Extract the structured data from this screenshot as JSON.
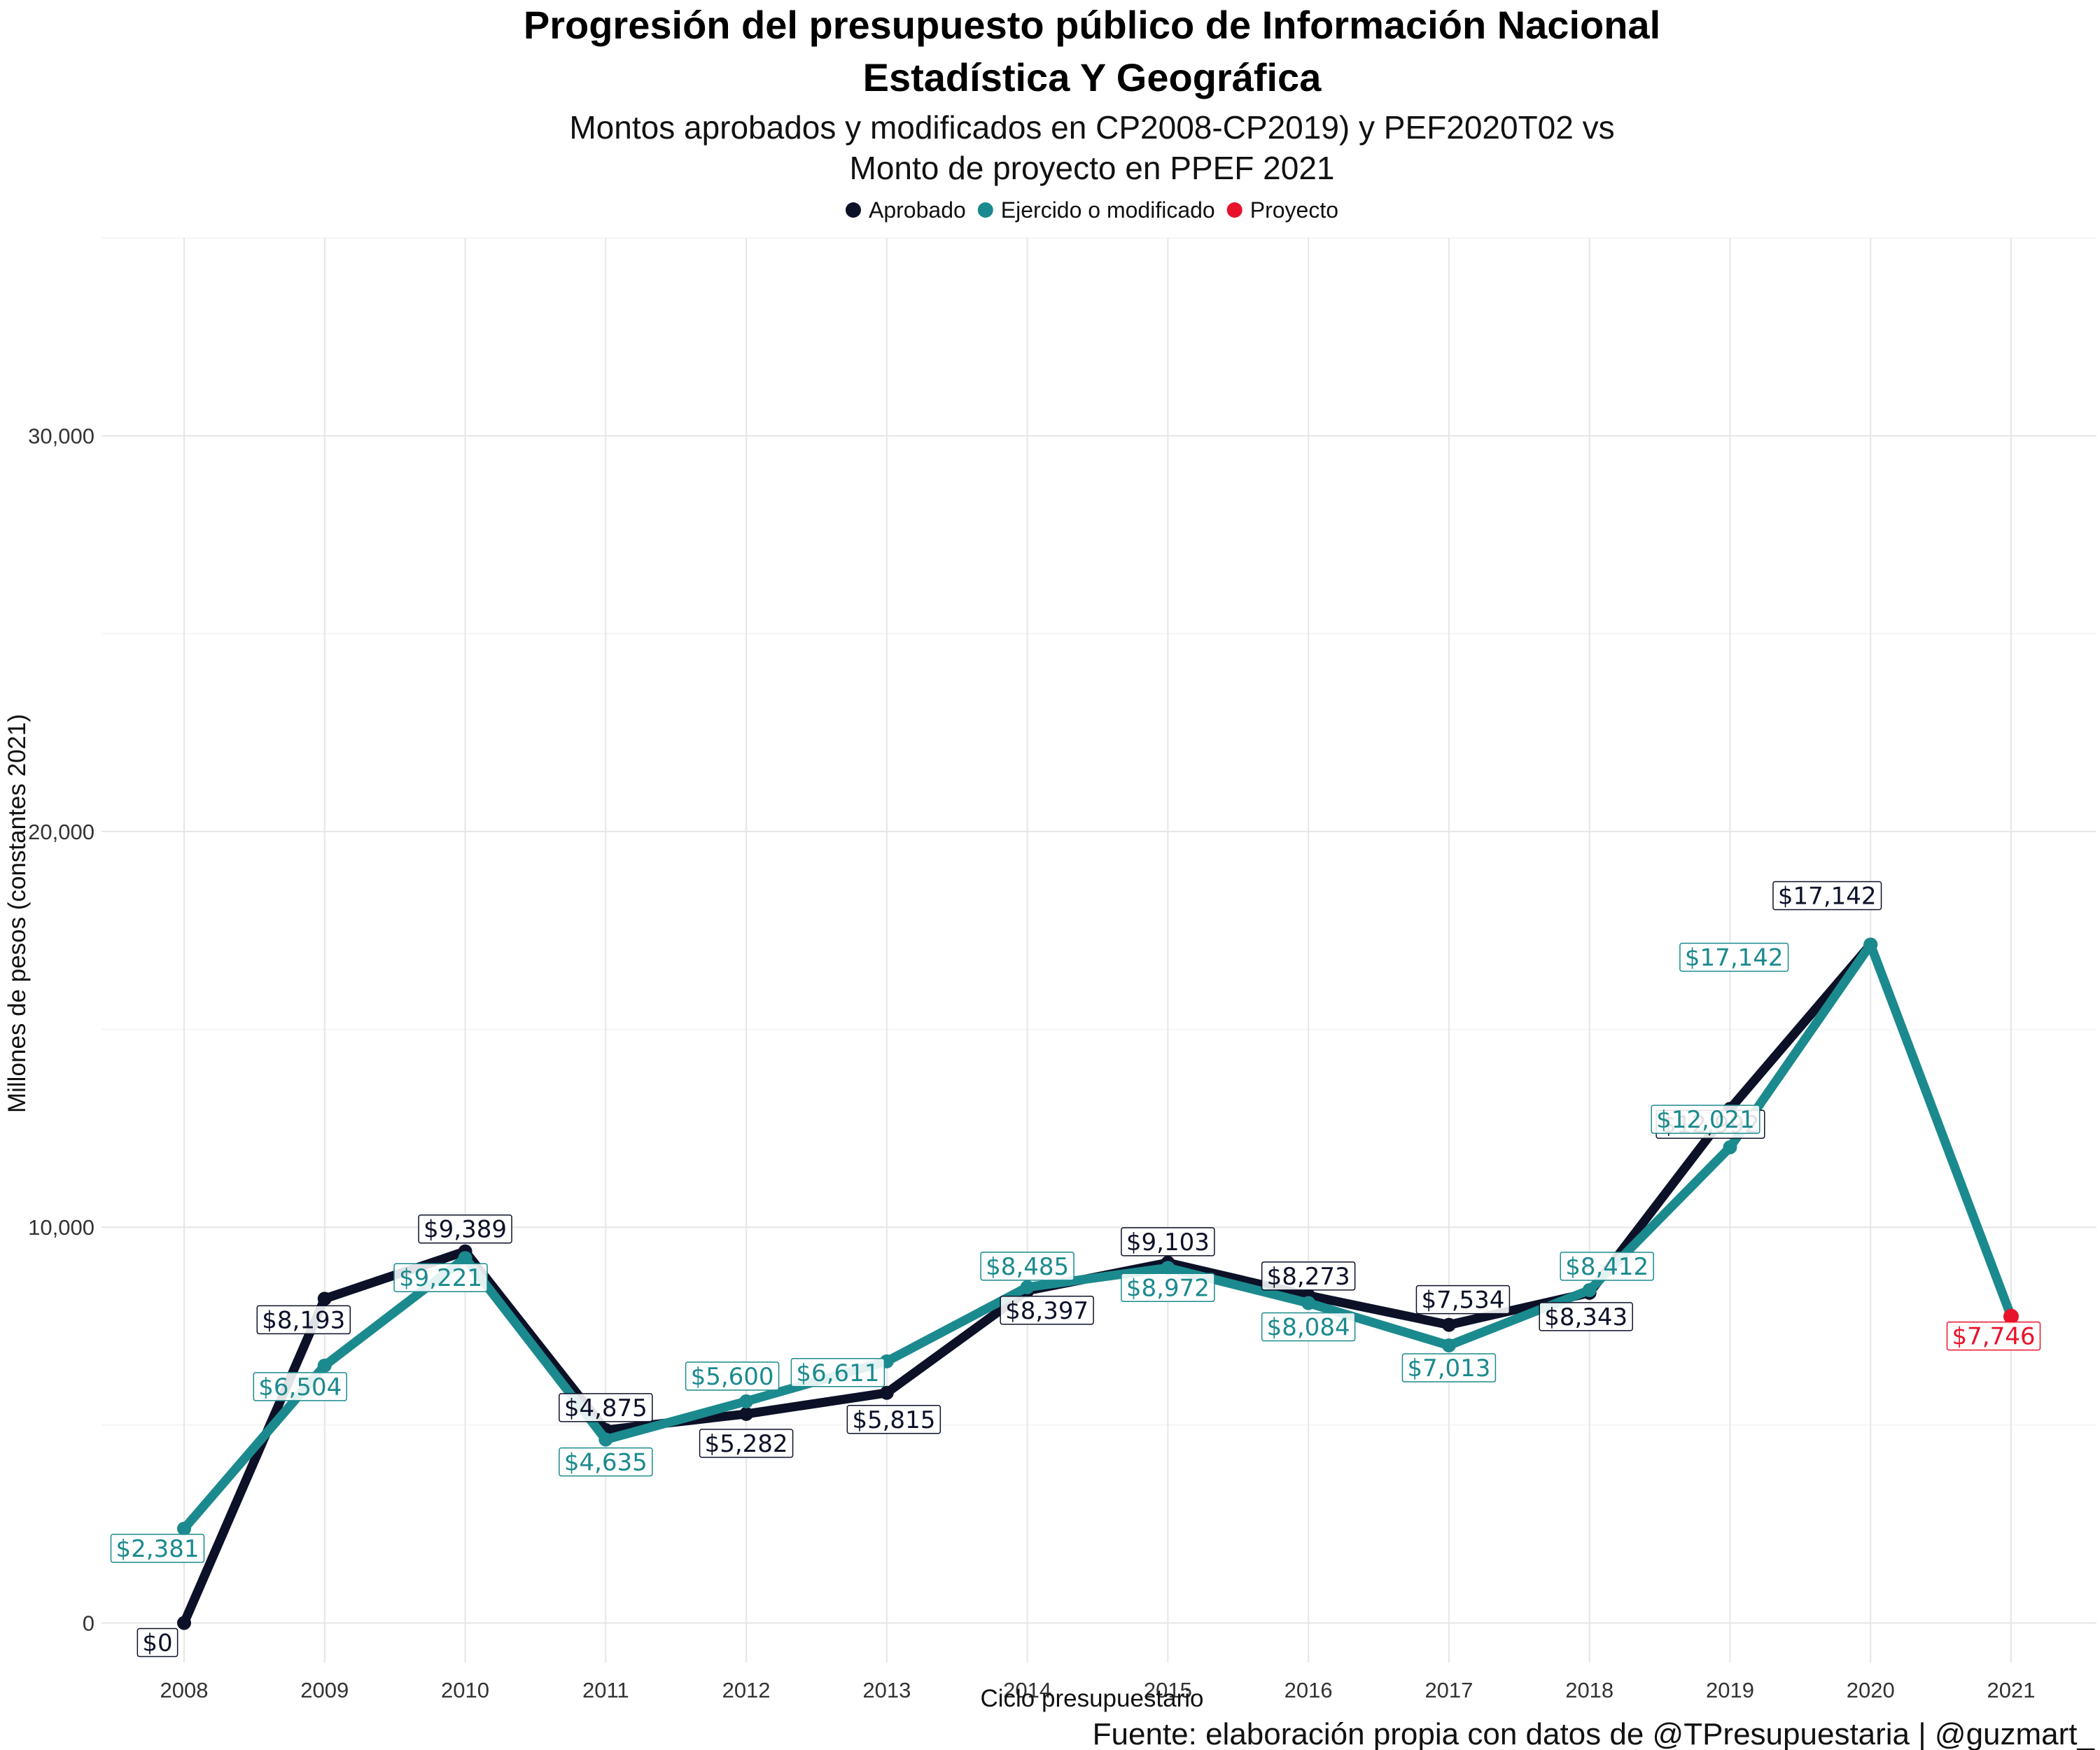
{
  "title_lines": [
    "Progresión del presupuesto público de Información Nacional",
    "Estadística Y Geográfica"
  ],
  "subtitle_lines": [
    "Montos aprobados y modificados en CP2008-CP2019) y PEF2020T02 vs",
    "Monto de proyecto en PPEF 2021"
  ],
  "caption": "Fuente: elaboración propia con datos de @TPresupuestaria | @guzmart_",
  "chart_data": {
    "type": "line",
    "title": "Progresión del presupuesto público de Información Nacional Estadística Y Geográfica",
    "subtitle": "Montos aprobados y modificados en CP2008-CP2019) y PEF2020T02 vs Monto de proyecto en PPEF 2021",
    "xlabel": "Ciclo presupuestario",
    "ylabel": "Millones de pesos (constantes 2021)",
    "x": [
      "2008",
      "2009",
      "2010",
      "2011",
      "2012",
      "2013",
      "2014",
      "2015",
      "2016",
      "2017",
      "2018",
      "2019",
      "2020",
      "2021"
    ],
    "ylim": [
      -1000,
      35000
    ],
    "yticks": [
      0,
      10000,
      20000,
      30000
    ],
    "ytick_labels": [
      "0",
      "10,000",
      "20,000",
      "30,000"
    ],
    "grid": true,
    "legend_position": "top",
    "series": [
      {
        "name": "Aprobado",
        "color": "#0c1128",
        "values": [
          0,
          8193,
          9389,
          4875,
          5282,
          5815,
          8397,
          9103,
          8273,
          7534,
          8343,
          12992,
          17142,
          null
        ],
        "labels": [
          "$0",
          "$8,193",
          "$9,389",
          "$4,875",
          "$5,282",
          "$5,815",
          "$8,397",
          "$9,103",
          "$8,273",
          "$7,534",
          "$8,343",
          "$12,992",
          "$17,142",
          ""
        ]
      },
      {
        "name": "Ejercido o modificado",
        "color": "#1b8a8e",
        "values": [
          2381,
          6504,
          9221,
          4635,
          5600,
          6611,
          8485,
          8972,
          8084,
          7013,
          8412,
          12021,
          17142,
          7746
        ],
        "labels": [
          "$2,381",
          "$6,504",
          "$9,221",
          "$4,635",
          "$5,600",
          "$6,611",
          "$8,485",
          "$8,972",
          "$8,084",
          "$7,013",
          "$8,412",
          "$12,021",
          "$17,142",
          ""
        ]
      },
      {
        "name": "Proyecto",
        "color": "#e8132b",
        "values": [
          null,
          null,
          null,
          null,
          null,
          null,
          null,
          null,
          null,
          null,
          null,
          null,
          null,
          7746
        ],
        "labels": [
          "",
          "",
          "",
          "",
          "",
          "",
          "",
          "",
          "",
          "",
          "",
          "",
          "",
          "$7,746"
        ]
      }
    ]
  }
}
